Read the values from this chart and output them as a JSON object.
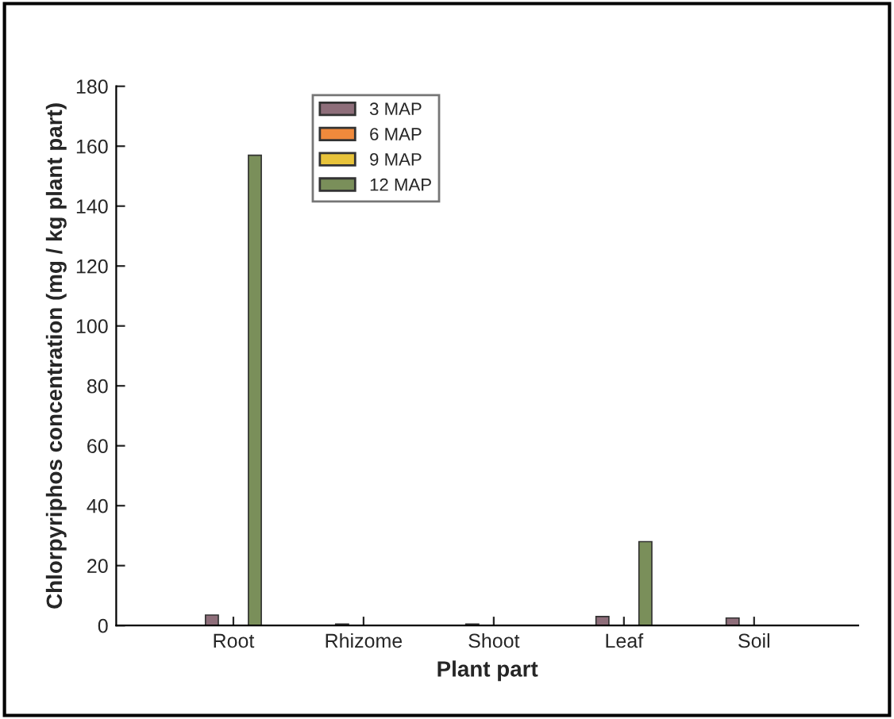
{
  "chart_data": {
    "type": "bar",
    "xlabel": "Plant part",
    "ylabel": "Chlorpyriphos concentration (mg / kg plant part)",
    "categories": [
      "Root",
      "Rhizome",
      "Shoot",
      "Leaf",
      "Soil"
    ],
    "series": [
      {
        "name": "3 MAP",
        "color": "#8e6e7a",
        "values": [
          3.5,
          0.5,
          0.5,
          3,
          2.5
        ]
      },
      {
        "name": "6 MAP",
        "color": "#f08a3c",
        "values": [
          null,
          null,
          null,
          null,
          null
        ]
      },
      {
        "name": "9 MAP",
        "color": "#e8c33a",
        "values": [
          null,
          null,
          null,
          null,
          null
        ]
      },
      {
        "name": "12 MAP",
        "color": "#7a8f5a",
        "values": [
          157,
          null,
          null,
          28,
          null
        ]
      }
    ],
    "ylim": [
      0,
      180
    ],
    "yticks": [
      0,
      20,
      40,
      60,
      80,
      100,
      120,
      140,
      160,
      180
    ],
    "grid": false,
    "legend": "top"
  }
}
